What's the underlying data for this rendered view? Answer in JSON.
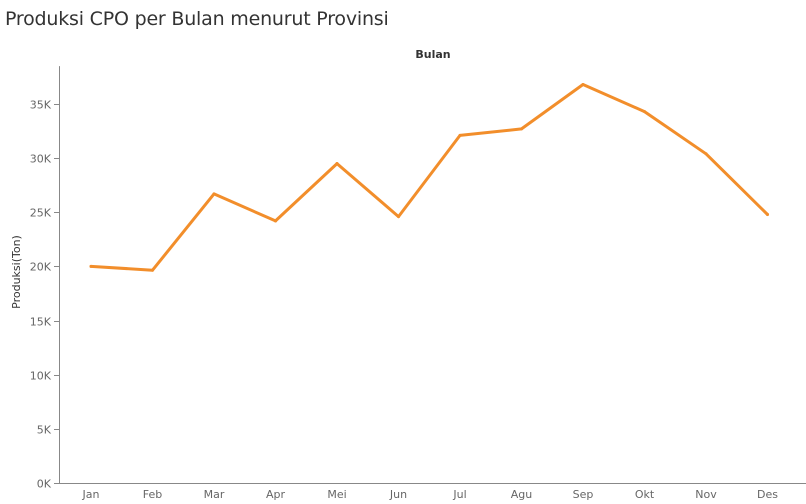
{
  "title": "Produksi CPO per Bulan menurut Provinsi",
  "chart_data": {
    "type": "line",
    "title": "Produksi CPO per Bulan menurut Provinsi",
    "xlabel": "Bulan",
    "ylabel": "Produksi(Ton)",
    "categories": [
      "Jan",
      "Feb",
      "Mar",
      "Apr",
      "Mei",
      "Jun",
      "Jul",
      "Agu",
      "Sep",
      "Okt",
      "Nov",
      "Des"
    ],
    "series": [
      {
        "values": [
          20000,
          19650,
          26700,
          24200,
          29500,
          24600,
          32100,
          32700,
          36800,
          34300,
          30400,
          24800
        ],
        "color": "#F28E2B"
      }
    ],
    "ylim": [
      0,
      38500
    ],
    "yticks": [
      0,
      5000,
      10000,
      15000,
      20000,
      25000,
      30000,
      35000
    ],
    "ytick_labels": [
      "0K",
      "5K",
      "10K",
      "15K",
      "20K",
      "25K",
      "30K",
      "35K"
    ],
    "grid": false,
    "legend": "none"
  }
}
